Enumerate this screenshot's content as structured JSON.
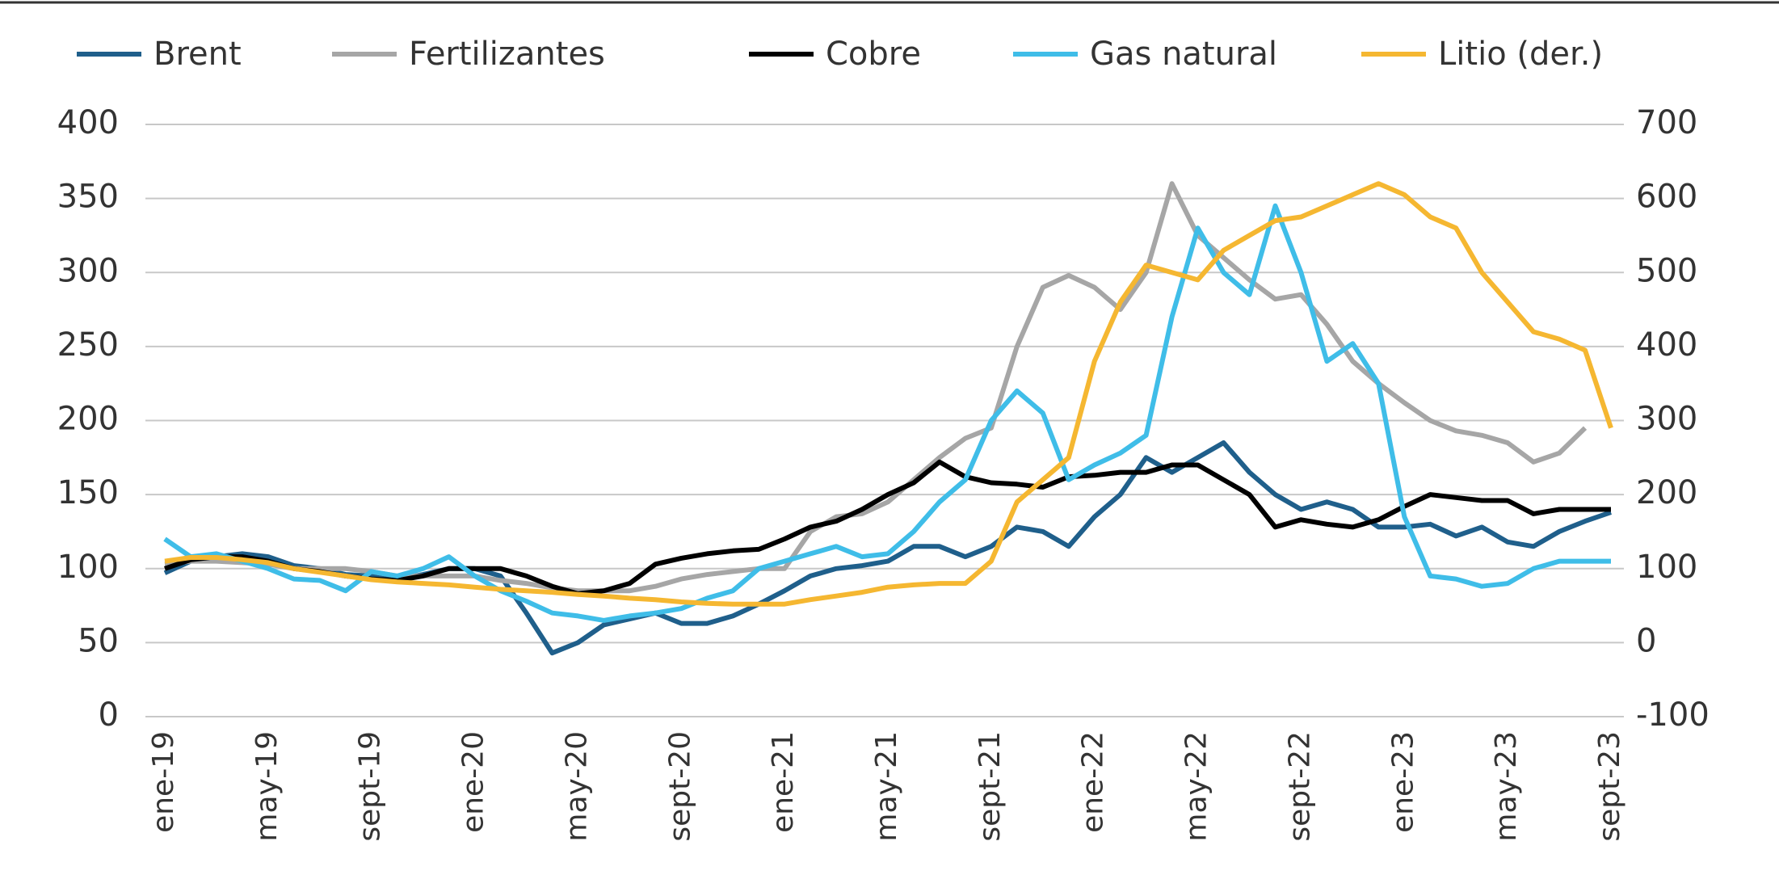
{
  "chart_data": {
    "type": "line",
    "categories": [
      "ene-19",
      null,
      null,
      null,
      "may-19",
      null,
      null,
      null,
      "sept-19",
      null,
      null,
      null,
      "ene-20",
      null,
      null,
      null,
      "may-20",
      null,
      null,
      null,
      "sept-20",
      null,
      null,
      null,
      "ene-21",
      null,
      null,
      null,
      "may-21",
      null,
      null,
      null,
      "sept-21",
      null,
      null,
      null,
      "ene-22",
      null,
      null,
      null,
      "may-22",
      null,
      null,
      null,
      "sept-22",
      null,
      null,
      null,
      "ene-23",
      null,
      null,
      null,
      "may-23",
      null,
      null,
      null,
      "sept-23"
    ],
    "series": [
      {
        "name": "Brent",
        "color": "#1f5f8b",
        "values": [
          97,
          105,
          108,
          110,
          108,
          102,
          100,
          96,
          95,
          93,
          96,
          100,
          100,
          95,
          70,
          43,
          50,
          62,
          66,
          70,
          63,
          63,
          68,
          76,
          85,
          95,
          100,
          102,
          105,
          115,
          115,
          108,
          115,
          128,
          125,
          115,
          135,
          150,
          175,
          165,
          175,
          185,
          165,
          150,
          140,
          145,
          140,
          128,
          128,
          130,
          122,
          128,
          118,
          115,
          125,
          132,
          138
        ]
      },
      {
        "name": "Fertilizantes",
        "color": "#a6a6a6",
        "values": [
          103,
          105,
          105,
          104,
          103,
          100,
          100,
          100,
          98,
          95,
          95,
          95,
          95,
          92,
          90,
          87,
          85,
          85,
          85,
          88,
          93,
          96,
          98,
          100,
          100,
          125,
          135,
          137,
          145,
          160,
          175,
          188,
          195,
          250,
          290,
          298,
          290,
          275,
          300,
          360,
          325,
          310,
          295,
          282,
          285,
          265,
          240,
          225,
          212,
          200,
          193,
          190,
          185,
          172,
          178,
          195,
          null
        ]
      },
      {
        "name": "Cobre",
        "color": "#000000",
        "values": [
          100,
          106,
          108,
          108,
          105,
          100,
          98,
          95,
          93,
          92,
          95,
          100,
          100,
          100,
          95,
          88,
          83,
          85,
          90,
          103,
          107,
          110,
          112,
          113,
          120,
          128,
          132,
          140,
          150,
          158,
          172,
          162,
          158,
          157,
          155,
          162,
          163,
          165,
          165,
          170,
          170,
          160,
          150,
          128,
          133,
          130,
          128,
          133,
          142,
          150,
          148,
          146,
          146,
          137,
          140,
          140,
          140
        ]
      },
      {
        "name": "Gas natural",
        "color": "#3fbde8",
        "values": [
          120,
          108,
          110,
          105,
          100,
          93,
          92,
          85,
          98,
          95,
          100,
          108,
          95,
          85,
          78,
          70,
          68,
          65,
          68,
          70,
          73,
          80,
          85,
          100,
          105,
          110,
          115,
          108,
          110,
          125,
          145,
          160,
          200,
          220,
          205,
          160,
          170,
          178,
          190,
          270,
          330,
          300,
          285,
          345,
          300,
          240,
          252,
          225,
          135,
          95,
          93,
          88,
          90,
          100,
          105,
          105,
          105
        ]
      },
      {
        "name": "Litio (der.)",
        "color": "#f5b731",
        "axis": "y2",
        "values": [
          110,
          115,
          115,
          112,
          108,
          100,
          95,
          90,
          85,
          82,
          80,
          78,
          75,
          72,
          70,
          68,
          65,
          63,
          60,
          58,
          55,
          53,
          52,
          52,
          52,
          58,
          63,
          68,
          75,
          78,
          80,
          80,
          110,
          190,
          220,
          250,
          380,
          460,
          510,
          500,
          490,
          530,
          550,
          570,
          575,
          590,
          605,
          620,
          605,
          575,
          560,
          500,
          460,
          420,
          410,
          395,
          290
        ]
      }
    ],
    "ylim": [
      0,
      400
    ],
    "yticks": [
      0,
      50,
      100,
      150,
      200,
      250,
      300,
      350,
      400
    ],
    "y2lim": [
      -100,
      700
    ],
    "y2ticks": [
      -100,
      0,
      100,
      200,
      300,
      400,
      500,
      600,
      700
    ],
    "grid": true,
    "legend": "top"
  }
}
